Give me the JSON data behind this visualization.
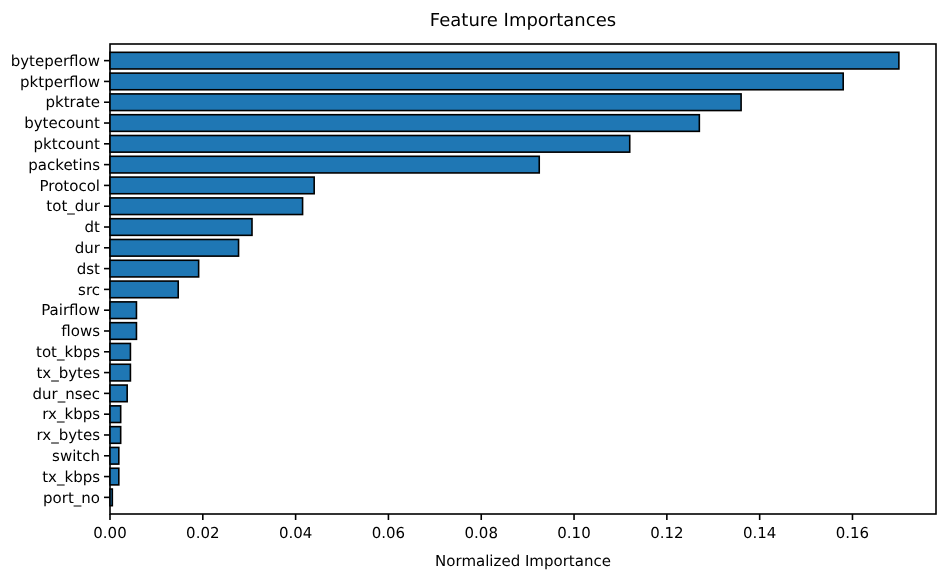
{
  "chart_data": {
    "type": "bar",
    "orientation": "horizontal",
    "title": "Feature Importances",
    "xlabel": "Normalized Importance",
    "categories": [
      "byteperflow",
      "pktperflow",
      "pktrate",
      "bytecount",
      "pktcount",
      "packetins",
      "Protocol",
      "tot_dur",
      "dt",
      "dur",
      "dst",
      "src",
      "Pairflow",
      "flows",
      "tot_kbps",
      "tx_bytes",
      "dur_nsec",
      "rx_kbps",
      "rx_bytes",
      "switch",
      "tx_kbps",
      "port_no"
    ],
    "values": [
      0.17,
      0.158,
      0.136,
      0.127,
      0.112,
      0.0925,
      0.044,
      0.0415,
      0.0306,
      0.0277,
      0.0191,
      0.0147,
      0.0057,
      0.0057,
      0.0044,
      0.0044,
      0.0037,
      0.0023,
      0.0023,
      0.0019,
      0.0019,
      0.0005
    ],
    "color": "#1f77b4",
    "xlim": [
      0,
      0.178
    ],
    "xticks": [
      {
        "value": 0,
        "label": "0.00"
      },
      {
        "value": 0.02,
        "label": "0.02"
      },
      {
        "value": 0.04,
        "label": "0.04"
      },
      {
        "value": 0.06,
        "label": "0.06"
      },
      {
        "value": 0.08,
        "label": "0.08"
      },
      {
        "value": 0.1,
        "label": "0.10"
      },
      {
        "value": 0.12,
        "label": "0.12"
      },
      {
        "value": 0.14,
        "label": "0.14"
      },
      {
        "value": 0.16,
        "label": "0.16"
      }
    ],
    "grid": false
  }
}
